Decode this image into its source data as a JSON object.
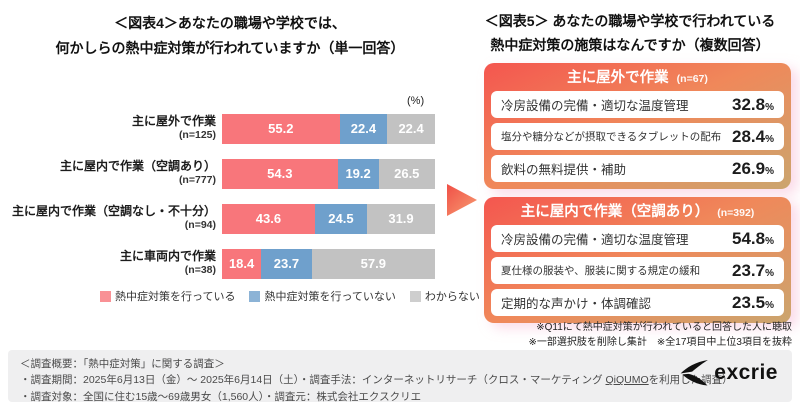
{
  "chart_data": [
    {
      "type": "bar",
      "subtype": "horizontal-stacked",
      "title_lines": [
        "＜図表4＞あなたの職場や学校では、",
        "何かしらの熱中症対策が行われていますか（単一回答）"
      ],
      "unit": "(%)",
      "xlim": [
        0,
        100
      ],
      "legend_position": "bottom",
      "categories": [
        {
          "label": "主に屋外で作業",
          "n": "(n=125)"
        },
        {
          "label": "主に屋内で作業（空調あり）",
          "n": "(n=777)"
        },
        {
          "label": "主に屋内で作業（空調なし・不十分）",
          "n": "(n=94)"
        },
        {
          "label": "主に車両内で作業",
          "n": "(n=38)"
        }
      ],
      "series": [
        {
          "name": "熱中症対策を行っている",
          "color": "#f8767b",
          "values": [
            55.2,
            54.3,
            43.6,
            18.4
          ]
        },
        {
          "name": "熱中症対策を行っていない",
          "color": "#6fa0cc",
          "values": [
            22.4,
            19.2,
            24.5,
            23.7
          ]
        },
        {
          "name": "わからない",
          "color": "#c2c2c2",
          "values": [
            22.4,
            26.5,
            31.9,
            57.9
          ]
        }
      ]
    },
    {
      "type": "table",
      "title_lines": [
        "＜図表5＞ あなたの職場や学校で行われている",
        "熱中症対策の施策はなんですか（複数回答）"
      ],
      "unit": "%",
      "groups": [
        {
          "header": "主に屋外で作業",
          "n": "(n=67)",
          "rows": [
            {
              "label": "冷房設備の完備・適切な温度管理",
              "value": "32.8"
            },
            {
              "label": "塩分や糖分などが摂取できるタブレットの配布",
              "value": "28.4"
            },
            {
              "label": "飲料の無料提供・補助",
              "value": "26.9"
            }
          ]
        },
        {
          "header": "主に屋内で作業（空調あり）",
          "n": "(n=392)",
          "rows": [
            {
              "label": "冷房設備の完備・適切な温度管理",
              "value": "54.8"
            },
            {
              "label": "夏仕様の服装や、服装に関する規定の緩和",
              "value": "23.7"
            },
            {
              "label": "定期的な声かけ・体調確認",
              "value": "23.5"
            }
          ]
        }
      ],
      "notes": [
        "※Q11にて熱中症対策が行われていると回答した人に聴取",
        "※一部選択肢を削除し集計　※全17項目中上位3項目を抜粋"
      ]
    }
  ],
  "footer": {
    "line1": "＜調査概要：「熱中症対策」に関する調査＞",
    "line2_parts": [
      "・調査期間：2025年6月13日（金）～ 2025年6月14日（土）・調査手法：インターネットリサーチ（クロス・マーケティング ",
      "QiQUMO",
      "を利用した調査）"
    ],
    "line3": "・調査対象：全国に住む15歳～69歳男女（1,560人）・調査元：株式会社エクスクリエ",
    "logo_text": "excrie"
  },
  "colors": {
    "series_red": "#f8767b",
    "series_blue": "#6fa0cc",
    "series_gray": "#c2c2c2",
    "card_gradient": [
      "#f4564f",
      "#f0885a",
      "#cba56e"
    ],
    "arrow": "#f04f46",
    "footer_bg": "#efeff0"
  }
}
